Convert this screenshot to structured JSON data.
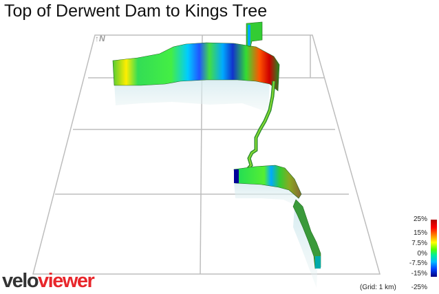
{
  "title": "Top of Derwent Dam to Kings Tree",
  "compass": {
    "north_label": "N",
    "icon": "north-arrow-icon"
  },
  "logo": {
    "part1": "velo",
    "part2": "viewer",
    "colors": {
      "velo": "#333333",
      "viewer": "#e8262b"
    }
  },
  "legend": {
    "labels": [
      "25%",
      "15%",
      "7.5%",
      "0%",
      "-7.5%",
      "-15%",
      "-25%"
    ],
    "grid_note": "(Grid: 1 km)"
  },
  "colors": {
    "grid": "#bdbdbd",
    "gradient_steep": "#b00000",
    "gradient_flat": "#33dd33",
    "gradient_descent": "#0022cc"
  }
}
